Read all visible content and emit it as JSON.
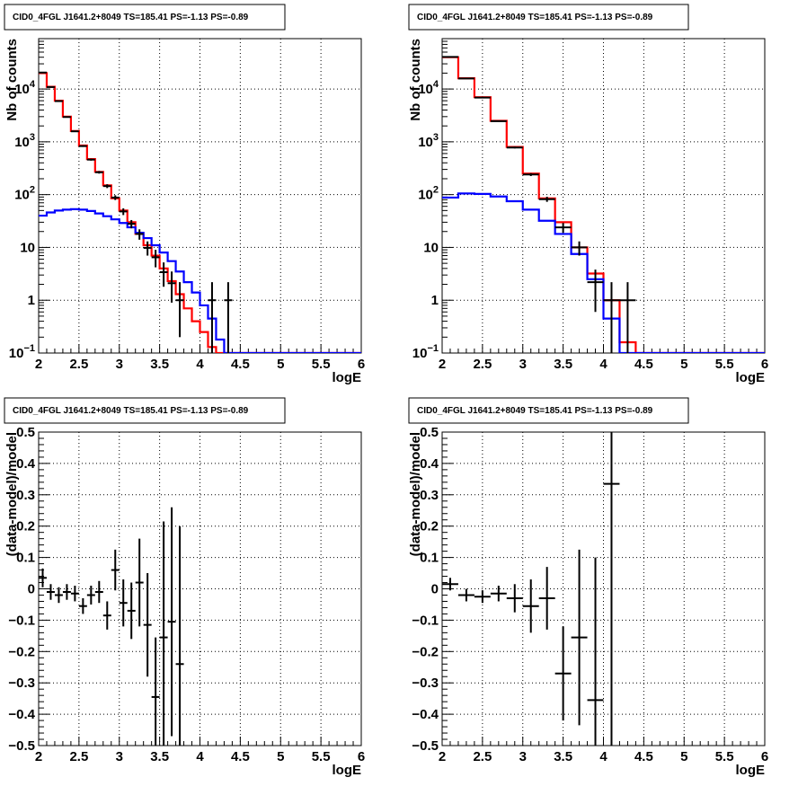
{
  "chart_data": [
    {
      "type": "step-histogram",
      "title": "CID0_4FGL J1641.2+8049 TS=185.41 PS=-1.13 PS=-0.89",
      "xlabel": "logE",
      "ylabel": "Nb of counts",
      "xlim": [
        2,
        6
      ],
      "ylim": [
        0.1,
        90000
      ],
      "yscale": "log",
      "grid": true,
      "x_ticks": [
        "2",
        "2.5",
        "3",
        "3.5",
        "4",
        "4.5",
        "5",
        "5.5",
        "6"
      ],
      "y_ticks": [
        {
          "value": 0.1,
          "base": "10",
          "exp": "−1"
        },
        {
          "value": 1,
          "label": "1"
        },
        {
          "value": 10,
          "label": "10"
        },
        {
          "value": 100,
          "base": "10",
          "exp": "2"
        },
        {
          "value": 1000,
          "base": "10",
          "exp": "3"
        },
        {
          "value": 10000,
          "base": "10",
          "exp": "4"
        }
      ],
      "bin_edges": [
        2.0,
        2.1,
        2.2,
        2.3,
        2.4,
        2.5,
        2.6,
        2.7,
        2.8,
        2.9,
        3.0,
        3.1,
        3.2,
        3.3,
        3.4,
        3.5,
        3.6,
        3.7,
        3.8,
        3.9,
        4.0,
        4.1,
        4.2,
        4.3,
        4.4,
        4.5,
        4.6,
        4.7,
        4.8,
        4.9,
        5.0,
        5.1,
        5.2,
        5.3,
        5.4,
        5.5,
        5.6,
        5.7,
        5.8,
        5.9,
        6.0
      ],
      "series": [
        {
          "color": "#ff0000",
          "values": [
            20000,
            11000,
            6000,
            3000,
            1600,
            850,
            470,
            270,
            150,
            85,
            50,
            30,
            18,
            11,
            7.0,
            4.0,
            2.3,
            1.3,
            0.7,
            0.4,
            0.25,
            0.13,
            0.1,
            0.1,
            0.1,
            0.1,
            0.1,
            0.1,
            0.1,
            0.1,
            0.1,
            0.1,
            0.1,
            0.1,
            0.1,
            0.1,
            0.1,
            0.1,
            0.1,
            0.1
          ]
        },
        {
          "color": "#0000ff",
          "values": [
            40,
            46,
            50,
            52,
            53,
            52,
            49,
            44,
            39,
            34,
            29,
            24,
            19,
            15,
            11,
            8,
            5.5,
            3.5,
            2.2,
            1.4,
            0.8,
            0.45,
            0.18,
            0.1,
            0.1,
            0.1,
            0.1,
            0.1,
            0.1,
            0.1,
            0.1,
            0.1,
            0.1,
            0.1,
            0.1,
            0.1,
            0.1,
            0.1,
            0.1,
            0.1
          ]
        }
      ],
      "points": [
        {
          "x": 2.05,
          "y": 20500,
          "ylo": 20300,
          "yhi": 20700
        },
        {
          "x": 2.15,
          "y": 10900,
          "ylo": 10750,
          "yhi": 11050
        },
        {
          "x": 2.25,
          "y": 5900,
          "ylo": 5800,
          "yhi": 6000
        },
        {
          "x": 2.35,
          "y": 2950,
          "ylo": 2890,
          "yhi": 3010
        },
        {
          "x": 2.45,
          "y": 1580,
          "ylo": 1540,
          "yhi": 1620
        },
        {
          "x": 2.55,
          "y": 830,
          "ylo": 800,
          "yhi": 860
        },
        {
          "x": 2.65,
          "y": 460,
          "ylo": 440,
          "yhi": 480
        },
        {
          "x": 2.75,
          "y": 265,
          "ylo": 250,
          "yhi": 280
        },
        {
          "x": 2.85,
          "y": 145,
          "ylo": 133,
          "yhi": 157
        },
        {
          "x": 2.95,
          "y": 88,
          "ylo": 79,
          "yhi": 97
        },
        {
          "x": 3.05,
          "y": 48,
          "ylo": 41,
          "yhi": 55
        },
        {
          "x": 3.15,
          "y": 28,
          "ylo": 23,
          "yhi": 33
        },
        {
          "x": 3.25,
          "y": 18,
          "ylo": 14,
          "yhi": 22
        },
        {
          "x": 3.35,
          "y": 9.8,
          "ylo": 7,
          "yhi": 13
        },
        {
          "x": 3.45,
          "y": 6.5,
          "ylo": 4.2,
          "yhi": 9
        },
        {
          "x": 3.55,
          "y": 3.4,
          "ylo": 1.8,
          "yhi": 5.2
        },
        {
          "x": 3.65,
          "y": 2.1,
          "ylo": 0.9,
          "yhi": 3.5
        },
        {
          "x": 3.75,
          "y": 1.0,
          "ylo": 0.2,
          "yhi": 2.2
        },
        {
          "x": 4.15,
          "y": 1.0,
          "ylo": 0.1,
          "yhi": 2.2
        },
        {
          "x": 4.35,
          "y": 1.0,
          "ylo": 0.1,
          "yhi": 2.2
        }
      ]
    },
    {
      "type": "step-histogram",
      "title": "CID0_4FGL J1641.2+8049 TS=185.41 PS=-1.13 PS=-0.89",
      "xlabel": "logE",
      "ylabel": "Nb of counts",
      "xlim": [
        2,
        6
      ],
      "ylim": [
        0.1,
        90000
      ],
      "yscale": "log",
      "grid": true,
      "x_ticks": [
        "2",
        "2.5",
        "3",
        "3.5",
        "4",
        "4.5",
        "5",
        "5.5",
        "6"
      ],
      "y_ticks": [
        {
          "value": 0.1,
          "base": "10",
          "exp": "−1"
        },
        {
          "value": 1,
          "label": "1"
        },
        {
          "value": 10,
          "label": "10"
        },
        {
          "value": 100,
          "base": "10",
          "exp": "2"
        },
        {
          "value": 1000,
          "base": "10",
          "exp": "3"
        },
        {
          "value": 10000,
          "base": "10",
          "exp": "4"
        }
      ],
      "bin_edges": [
        2.0,
        2.2,
        2.4,
        2.6,
        2.8,
        3.0,
        3.2,
        3.4,
        3.6,
        3.8,
        4.0,
        4.2,
        4.4,
        4.6,
        4.8,
        5.0,
        5.2,
        5.4,
        5.6,
        5.8,
        6.0
      ],
      "series": [
        {
          "color": "#ff0000",
          "values": [
            40000,
            16000,
            7000,
            2500,
            800,
            250,
            85,
            30,
            10,
            3.2,
            1.0,
            0.16,
            0.1,
            0.1,
            0.1,
            0.1,
            0.1,
            0.1,
            0.1,
            0.1
          ]
        },
        {
          "color": "#0000ff",
          "values": [
            88,
            105,
            103,
            92,
            75,
            52,
            32,
            18,
            7.5,
            2.5,
            0.45,
            0.1,
            0.1,
            0.1,
            0.1,
            0.1,
            0.1,
            0.1,
            0.1,
            0.1
          ]
        }
      ],
      "points": [
        {
          "x": 2.1,
          "y": 40500,
          "ylo": 40300,
          "yhi": 40700
        },
        {
          "x": 2.3,
          "y": 15800,
          "ylo": 15650,
          "yhi": 15950
        },
        {
          "x": 2.5,
          "y": 6900,
          "ylo": 6800,
          "yhi": 7000
        },
        {
          "x": 2.7,
          "y": 2460,
          "ylo": 2400,
          "yhi": 2520
        },
        {
          "x": 2.9,
          "y": 780,
          "ylo": 750,
          "yhi": 810
        },
        {
          "x": 3.1,
          "y": 240,
          "ylo": 225,
          "yhi": 255
        },
        {
          "x": 3.3,
          "y": 82,
          "ylo": 73,
          "yhi": 91
        },
        {
          "x": 3.5,
          "y": 24,
          "ylo": 19,
          "yhi": 29
        },
        {
          "x": 3.7,
          "y": 10,
          "ylo": 7,
          "yhi": 13
        },
        {
          "x": 3.9,
          "y": 2.2,
          "ylo": 0.6,
          "yhi": 3.8
        },
        {
          "x": 4.1,
          "y": 1.0,
          "ylo": 0.1,
          "yhi": 2.2
        },
        {
          "x": 4.3,
          "y": 1.0,
          "ylo": 0.1,
          "yhi": 2.2
        }
      ]
    },
    {
      "type": "errorbar",
      "title": "CID0_4FGL J1641.2+8049 TS=185.41 PS=-1.13 PS=-0.89",
      "xlabel": "logE",
      "ylabel": "(data-model)/model",
      "xlim": [
        2,
        6
      ],
      "ylim": [
        -0.5,
        0.5
      ],
      "grid": true,
      "x_ticks": [
        "2",
        "2.5",
        "3",
        "3.5",
        "4",
        "4.5",
        "5",
        "5.5",
        "6"
      ],
      "y_ticks": [
        "−0.5",
        "−0.4",
        "−0.3",
        "−0.2",
        "−0.1",
        "0",
        "0.1",
        "0.2",
        "0.3",
        "0.4",
        "0.5"
      ],
      "bin_width": 0.1,
      "points": [
        {
          "x": 2.05,
          "y": 0.035,
          "err": 0.03
        },
        {
          "x": 2.15,
          "y": -0.01,
          "err": 0.025
        },
        {
          "x": 2.25,
          "y": -0.02,
          "err": 0.025
        },
        {
          "x": 2.35,
          "y": -0.01,
          "err": 0.025
        },
        {
          "x": 2.45,
          "y": -0.015,
          "err": 0.025
        },
        {
          "x": 2.55,
          "y": -0.055,
          "err": 0.025
        },
        {
          "x": 2.65,
          "y": -0.02,
          "err": 0.03
        },
        {
          "x": 2.75,
          "y": -0.01,
          "err": 0.035
        },
        {
          "x": 2.85,
          "y": -0.085,
          "err": 0.045
        },
        {
          "x": 2.95,
          "y": 0.06,
          "err": 0.065
        },
        {
          "x": 3.05,
          "y": -0.045,
          "err": 0.075
        },
        {
          "x": 3.15,
          "y": -0.07,
          "err": 0.09
        },
        {
          "x": 3.25,
          "y": 0.02,
          "err": 0.14
        },
        {
          "x": 3.35,
          "y": -0.115,
          "err": 0.165
        },
        {
          "x": 3.45,
          "y": -0.345,
          "err": 0.19
        },
        {
          "x": 3.55,
          "y": -0.155,
          "err": 0.37
        },
        {
          "x": 3.65,
          "y": -0.105,
          "err": 0.365
        },
        {
          "x": 3.75,
          "y": -0.24,
          "err": 0.44
        }
      ]
    },
    {
      "type": "errorbar",
      "title": "CID0_4FGL J1641.2+8049 TS=185.41 PS=-1.13 PS=-0.89",
      "xlabel": "logE",
      "ylabel": "(data-model)/model",
      "xlim": [
        2,
        6
      ],
      "ylim": [
        -0.5,
        0.5
      ],
      "grid": true,
      "x_ticks": [
        "2",
        "2.5",
        "3",
        "3.5",
        "4",
        "4.5",
        "5",
        "5.5",
        "6"
      ],
      "y_ticks": [
        "−0.5",
        "−0.4",
        "−0.3",
        "−0.2",
        "−0.1",
        "0",
        "0.1",
        "0.2",
        "0.3",
        "0.4",
        "0.5"
      ],
      "bin_width": 0.2,
      "points": [
        {
          "x": 2.1,
          "y": 0.015,
          "err": 0.02
        },
        {
          "x": 2.3,
          "y": -0.02,
          "err": 0.02
        },
        {
          "x": 2.5,
          "y": -0.025,
          "err": 0.02
        },
        {
          "x": 2.7,
          "y": -0.015,
          "err": 0.025
        },
        {
          "x": 2.9,
          "y": -0.03,
          "err": 0.045
        },
        {
          "x": 3.1,
          "y": -0.055,
          "err": 0.085
        },
        {
          "x": 3.3,
          "y": -0.03,
          "err": 0.1
        },
        {
          "x": 3.5,
          "y": -0.27,
          "err": 0.15
        },
        {
          "x": 3.7,
          "y": -0.155,
          "err": 0.28
        },
        {
          "x": 3.9,
          "y": -0.355,
          "err": 0.455
        },
        {
          "x": 4.1,
          "y": 0.335,
          "err": 0.9
        }
      ]
    }
  ]
}
